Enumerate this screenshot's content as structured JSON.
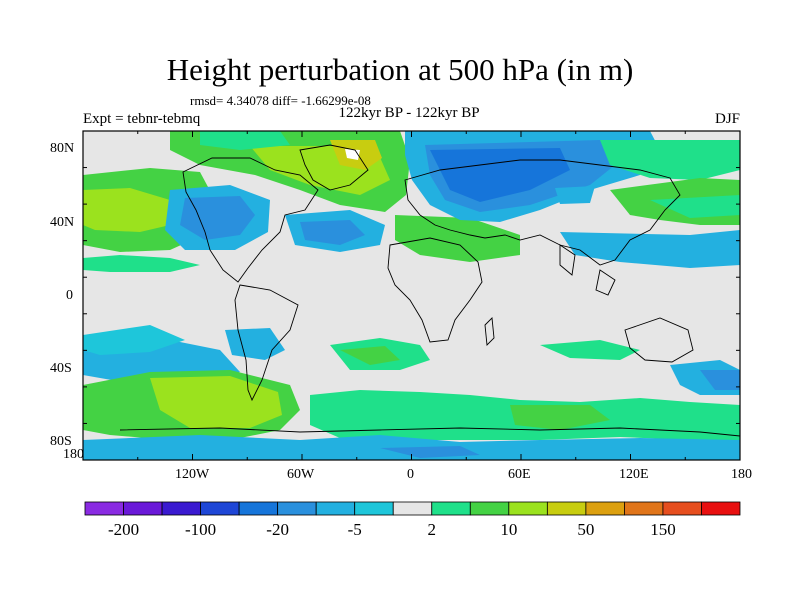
{
  "title": "Height perturbation at 500 hPa (in m)",
  "stats": "rmsd= 4.34078 diff= -1.66299e-08",
  "left_label": "Expt = tebnr-tebmq",
  "center_label": "122kyr BP - 122kyr BP",
  "right_label": "DJF",
  "map": {
    "projection": "cylindrical equidistant",
    "lon_range": [
      -180,
      180
    ],
    "lat_range": [
      -90,
      90
    ],
    "x_ticks": [
      "180",
      "120W",
      "60W",
      "0",
      "60E",
      "120E",
      "180"
    ],
    "y_ticks": [
      "80N",
      "40N",
      "0",
      "40S",
      "80S"
    ],
    "missing_color": "#e6e6e6",
    "coastline_color": "#000000",
    "field_regions": [
      {
        "feature": "Arctic/Greenland positive anomaly",
        "level": 4
      },
      {
        "feature": "Siberia negative anomaly",
        "level": -4
      },
      {
        "feature": "North Pacific positive anomaly",
        "level": 5
      },
      {
        "feature": "Eastern North America negative anomaly",
        "level": -2
      },
      {
        "feature": "South Pacific positive anomaly",
        "level": 5
      },
      {
        "feature": "Southern Ocean positive band",
        "level": 2
      },
      {
        "feature": "Southern Ocean negative band",
        "level": -2
      }
    ]
  },
  "colorbar": {
    "colors": [
      "#8a2be2",
      "#6a19d8",
      "#3a1ad0",
      "#1e46d6",
      "#1675da",
      "#2a90dd",
      "#23b0e0",
      "#1ec6da",
      "#e6e6e6",
      "#1fe08a",
      "#44d244",
      "#9be21e",
      "#c8cd10",
      "#dca010",
      "#e0751a",
      "#e64e1e",
      "#e81010"
    ],
    "tick_labels": [
      "-200",
      "-100",
      "-20",
      "-5",
      "2",
      "10",
      "50",
      "150"
    ]
  }
}
